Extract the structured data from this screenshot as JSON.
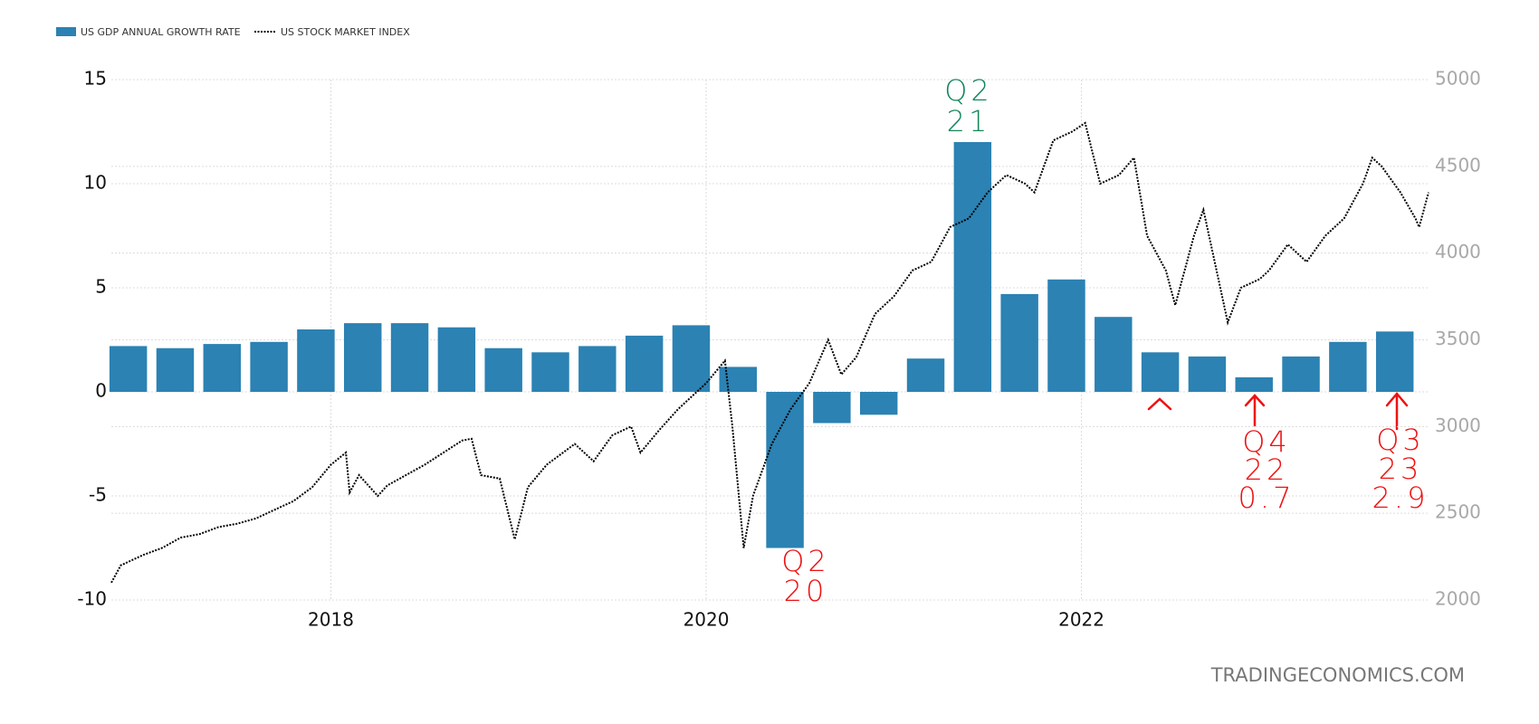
{
  "chart_data": {
    "type": "combo",
    "xlim": [
      2016.83,
      2023.85
    ],
    "xticks": [
      2018,
      2020,
      2022
    ],
    "ylim": [
      -10,
      15
    ],
    "yticks": [
      15,
      10,
      5,
      0,
      -5,
      -10
    ],
    "y2lim": [
      2000,
      5000
    ],
    "y2ticks": [
      5000,
      4500,
      4000,
      3500,
      3000,
      2500,
      2000
    ],
    "grid": true,
    "series": [
      {
        "name": "US GDP ANNUAL GROWTH RATE",
        "type": "bar",
        "color": "#2b82b3",
        "x": [
          2016.92,
          2017.17,
          2017.42,
          2017.67,
          2017.92,
          2018.17,
          2018.42,
          2018.67,
          2018.92,
          2019.17,
          2019.42,
          2019.67,
          2019.92,
          2020.17,
          2020.42,
          2020.67,
          2020.92,
          2021.17,
          2021.42,
          2021.67,
          2021.92,
          2022.17,
          2022.42,
          2022.67,
          2022.92,
          2023.17,
          2023.42,
          2023.67
        ],
        "values": [
          2.2,
          2.1,
          2.3,
          2.4,
          3.0,
          3.3,
          3.3,
          3.1,
          2.1,
          1.9,
          2.2,
          2.7,
          3.2,
          1.2,
          -7.5,
          -1.5,
          -1.1,
          1.6,
          12.0,
          4.7,
          5.4,
          3.6,
          1.9,
          1.7,
          0.7,
          1.7,
          2.4,
          2.9
        ]
      },
      {
        "name": "US STOCK MARKET INDEX",
        "type": "line",
        "color": "#000000",
        "axis": "y2",
        "x": [
          2016.83,
          2016.88,
          2017.0,
          2017.1,
          2017.2,
          2017.3,
          2017.4,
          2017.5,
          2017.6,
          2017.7,
          2017.8,
          2017.9,
          2018.0,
          2018.08,
          2018.1,
          2018.15,
          2018.25,
          2018.3,
          2018.4,
          2018.5,
          2018.6,
          2018.7,
          2018.75,
          2018.8,
          2018.9,
          2018.98,
          2019.05,
          2019.15,
          2019.3,
          2019.4,
          2019.5,
          2019.6,
          2019.65,
          2019.75,
          2019.85,
          2020.0,
          2020.1,
          2020.14,
          2020.2,
          2020.25,
          2020.35,
          2020.45,
          2020.55,
          2020.65,
          2020.72,
          2020.8,
          2020.9,
          2021.0,
          2021.1,
          2021.2,
          2021.3,
          2021.4,
          2021.5,
          2021.6,
          2021.7,
          2021.75,
          2021.85,
          2021.95,
          2022.02,
          2022.1,
          2022.2,
          2022.28,
          2022.35,
          2022.45,
          2022.5,
          2022.6,
          2022.65,
          2022.72,
          2022.78,
          2022.85,
          2022.95,
          2023.0,
          2023.1,
          2023.2,
          2023.3,
          2023.4,
          2023.5,
          2023.55,
          2023.6,
          2023.7,
          2023.78,
          2023.8,
          2023.85
        ],
        "values": [
          2100,
          2200,
          2260,
          2300,
          2360,
          2380,
          2420,
          2440,
          2470,
          2520,
          2570,
          2650,
          2780,
          2850,
          2620,
          2720,
          2600,
          2660,
          2720,
          2780,
          2850,
          2920,
          2930,
          2720,
          2700,
          2350,
          2650,
          2780,
          2900,
          2800,
          2950,
          3000,
          2850,
          2980,
          3100,
          3250,
          3380,
          3000,
          2300,
          2600,
          2900,
          3100,
          3250,
          3500,
          3300,
          3400,
          3650,
          3750,
          3900,
          3950,
          4150,
          4200,
          4350,
          4450,
          4400,
          4350,
          4650,
          4700,
          4750,
          4400,
          4450,
          4550,
          4100,
          3900,
          3700,
          4100,
          4250,
          3900,
          3600,
          3800,
          3850,
          3900,
          4050,
          3950,
          4100,
          4200,
          4400,
          4550,
          4500,
          4350,
          4200,
          4150,
          4350
        ]
      }
    ],
    "annotations": [
      {
        "lines": [
          "Q2",
          "21"
        ],
        "color": "#14875a"
      },
      {
        "lines": [
          "Q2",
          "20"
        ],
        "color": "#ee1111"
      },
      {
        "lines": [
          "Q4",
          "22",
          "0.7"
        ],
        "color": "#ee1111"
      },
      {
        "lines": [
          "Q3",
          "23",
          "2.9"
        ],
        "color": "#ee1111"
      }
    ],
    "source": "TRADINGECONOMICS.COM"
  }
}
